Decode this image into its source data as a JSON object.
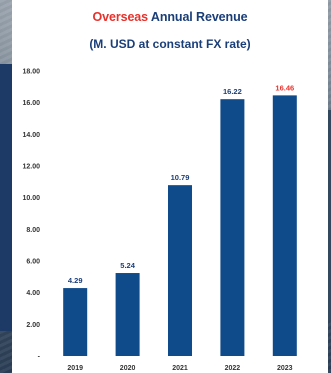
{
  "title_parts": {
    "highlight": "Overseas",
    "rest": " Annual Revenue"
  },
  "subtitle": "(M. USD at constant FX rate)",
  "colors": {
    "bar": "#0f4a8a",
    "highlight": "#e8312b",
    "label": "#1a3e78",
    "axis": "#333333"
  },
  "chart_data": {
    "type": "bar",
    "title": "Overseas Annual Revenue",
    "subtitle": "(M. USD at constant FX rate)",
    "categories": [
      "2019",
      "2020",
      "2021",
      "2022",
      "2023"
    ],
    "values": [
      4.29,
      5.24,
      10.79,
      16.22,
      16.46
    ],
    "value_labels": [
      "4.29",
      "5.24",
      "10.79",
      "16.22",
      "16.46"
    ],
    "highlight_index": 4,
    "ylim": [
      0,
      18
    ],
    "yticks": [
      0,
      2,
      4,
      6,
      8,
      10,
      12,
      14,
      16,
      18
    ],
    "ytick_labels": [
      "-",
      "2.00",
      "4.00",
      "6.00",
      "8.00",
      "10.00",
      "12.00",
      "14.00",
      "16.00",
      "18.00"
    ],
    "grid": false
  }
}
